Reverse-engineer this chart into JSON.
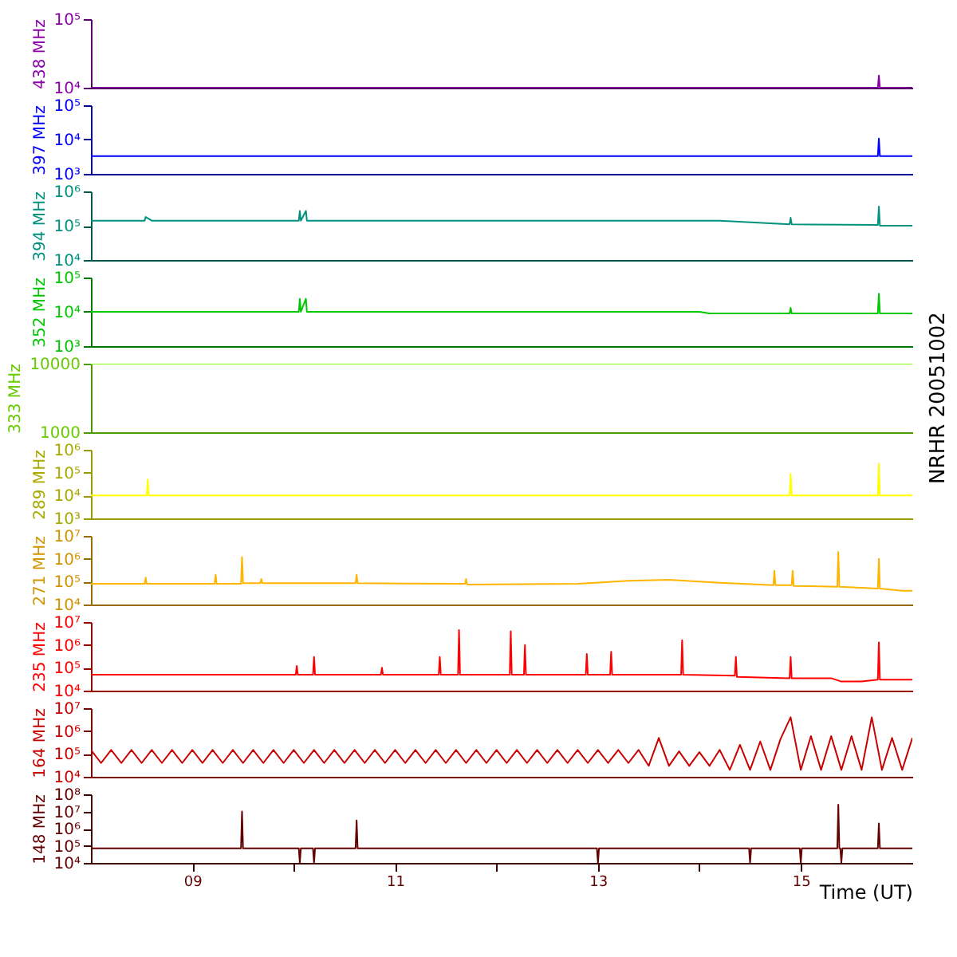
{
  "chart_data": [
    {
      "type": "line",
      "ylabel": "438 MHz",
      "color": "#8c00aa",
      "log": true,
      "tick_labels": "y",
      "xlim": [
        8,
        16.1
      ],
      "ylim": [
        10000,
        100000
      ],
      "yticks": [
        {
          "value": 10000,
          "label": "10⁴"
        },
        {
          "value": 100000,
          "label": "10⁵"
        }
      ],
      "x": [
        8,
        15.76,
        15.77,
        15.78,
        16.1
      ],
      "values": [
        10000,
        10000,
        15000,
        10000,
        10000
      ]
    },
    {
      "type": "line",
      "ylabel": "397 MHz",
      "color": "#0000ff",
      "log": true,
      "tick_labels": "y",
      "xlim": [
        8,
        16.1
      ],
      "ylim": [
        1000,
        100000
      ],
      "yticks": [
        {
          "value": 1000,
          "label": "10³"
        },
        {
          "value": 10000,
          "label": "10⁴"
        },
        {
          "value": 100000,
          "label": "10⁵"
        }
      ],
      "x": [
        8,
        15.76,
        15.77,
        15.78,
        16.1
      ],
      "values": [
        3300,
        3300,
        10700,
        3300,
        3300
      ]
    },
    {
      "type": "line",
      "ylabel": "394 MHz",
      "color": "#00917f",
      "log": true,
      "tick_labels": "y",
      "xlim": [
        8,
        16.1
      ],
      "ylim": [
        10000,
        1000000
      ],
      "yticks": [
        {
          "value": 10000,
          "label": "10⁴"
        },
        {
          "value": 100000,
          "label": "10⁵"
        },
        {
          "value": 1000000,
          "label": "10⁶"
        }
      ],
      "x": [
        8,
        8.53,
        8.54,
        8.6,
        10.05,
        10.06,
        10.07,
        10.12,
        10.13,
        14.2,
        14.89,
        14.9,
        14.91,
        15.76,
        15.77,
        15.78,
        16.1
      ],
      "values": [
        140000,
        140000,
        180000,
        140000,
        140000,
        270000,
        140000,
        270000,
        140000,
        140000,
        110000,
        170000,
        110000,
        105000,
        360000,
        100000,
        100000
      ]
    },
    {
      "type": "line",
      "ylabel": "352 MHz",
      "color": "#00c800",
      "log": true,
      "tick_labels": "y",
      "xlim": [
        8,
        16.1
      ],
      "ylim": [
        1000,
        100000
      ],
      "yticks": [
        {
          "value": 1000,
          "label": "10³"
        },
        {
          "value": 10000,
          "label": "10⁴"
        },
        {
          "value": 100000,
          "label": "10⁵"
        }
      ],
      "x": [
        8,
        10.05,
        10.06,
        10.07,
        10.12,
        10.13,
        14,
        14.1,
        14.89,
        14.9,
        14.91,
        15.76,
        15.77,
        15.78,
        16.1
      ],
      "values": [
        10000,
        10000,
        24000,
        10000,
        24000,
        10000,
        10000,
        9000,
        9000,
        13000,
        9000,
        9000,
        34000,
        9000,
        9000
      ]
    },
    {
      "type": "line",
      "ylabel": "333 MHz",
      "color": "#80ff00",
      "log": true,
      "tick_labels": "y",
      "xlim": [
        8,
        16.1
      ],
      "ylim": [
        1000,
        10000
      ],
      "yticks": [
        1000,
        10000
      ],
      "annotations": [
        "NRHR 20051002"
      ],
      "x": [
        8,
        16.1
      ],
      "values": [
        10000,
        10000
      ]
    },
    {
      "type": "line",
      "ylabel": "289 MHz",
      "color": "#ffff00",
      "log": true,
      "tick_labels": "y",
      "xlim": [
        8,
        16.1
      ],
      "ylim": [
        1000,
        1000000
      ],
      "yticks": [
        {
          "value": 1000,
          "label": "10³"
        },
        {
          "value": 10000,
          "label": "10⁴"
        },
        {
          "value": 100000,
          "label": "10⁵"
        },
        {
          "value": 1000000,
          "label": "10⁶"
        }
      ],
      "x": [
        8,
        8.55,
        8.56,
        8.57,
        14.89,
        14.9,
        14.91,
        15.76,
        15.77,
        15.78,
        16.1
      ],
      "values": [
        10000,
        10000,
        50000,
        10000,
        10000,
        90000,
        10000,
        10000,
        250000,
        10000,
        10000
      ]
    },
    {
      "type": "line",
      "ylabel": "271 MHz",
      "color": "#ffb400",
      "log": true,
      "tick_labels": "y",
      "xlim": [
        8,
        16.1
      ],
      "ylim": [
        10000,
        10000000
      ],
      "yticks": [
        {
          "value": 10000,
          "label": "10⁴"
        },
        {
          "value": 100000,
          "label": "10⁵"
        },
        {
          "value": 1000000,
          "label": "10⁶"
        },
        {
          "value": 10000000,
          "label": "10⁷"
        }
      ],
      "x": [
        8,
        8.53,
        8.54,
        8.55,
        9.22,
        9.23,
        9.24,
        9.48,
        9.49,
        9.5,
        9.67,
        9.68,
        9.69,
        10.61,
        10.62,
        10.63,
        11.69,
        11.7,
        11.71,
        12.8,
        13.3,
        13.7,
        14.2,
        14.73,
        14.74,
        14.75,
        14.91,
        14.92,
        14.93,
        15.36,
        15.37,
        15.38,
        15.76,
        15.77,
        15.78,
        16,
        16.1
      ],
      "values": [
        80000,
        80000,
        150000,
        80000,
        80000,
        200000,
        80000,
        80000,
        1200000,
        85000,
        85000,
        130000,
        85000,
        85000,
        200000,
        85000,
        80000,
        130000,
        75000,
        80000,
        110000,
        120000,
        90000,
        70000,
        300000,
        70000,
        70000,
        300000,
        65000,
        60000,
        2000000,
        60000,
        50000,
        1000000,
        50000,
        40000,
        40000
      ]
    },
    {
      "type": "line",
      "ylabel": "235 MHz",
      "color": "#ff0000",
      "log": true,
      "tick_labels": "y",
      "xlim": [
        8,
        16.1
      ],
      "ylim": [
        10000,
        10000000
      ],
      "yticks": [
        {
          "value": 10000,
          "label": "10⁴"
        },
        {
          "value": 100000,
          "label": "10⁵"
        },
        {
          "value": 1000000,
          "label": "10⁶"
        },
        {
          "value": 10000000,
          "label": "10⁷"
        }
      ],
      "x": [
        8,
        10.02,
        10.03,
        10.04,
        10.19,
        10.2,
        10.21,
        10.86,
        10.87,
        10.88,
        11.43,
        11.44,
        11.45,
        11.62,
        11.63,
        11.64,
        12.13,
        12.14,
        12.15,
        12.27,
        12.28,
        12.29,
        12.88,
        12.89,
        12.9,
        13.12,
        13.13,
        13.14,
        13.82,
        13.83,
        13.84,
        14.35,
        14.36,
        14.37,
        14.89,
        14.9,
        14.91,
        15.3,
        15.4,
        15.6,
        15.76,
        15.77,
        15.78,
        16.1
      ],
      "values": [
        50000,
        50000,
        120000,
        50000,
        50000,
        300000,
        50000,
        50000,
        100000,
        50000,
        50000,
        300000,
        50000,
        50000,
        4500000,
        50000,
        50000,
        4000000,
        50000,
        50000,
        1000000,
        50000,
        50000,
        400000,
        50000,
        50000,
        500000,
        50000,
        50000,
        1600000,
        50000,
        45000,
        300000,
        40000,
        35000,
        300000,
        35000,
        35000,
        25000,
        25000,
        30000,
        1300000,
        30000,
        30000
      ]
    },
    {
      "type": "line",
      "ylabel": "164 MHz",
      "color": "#c80000",
      "log": true,
      "tick_labels": "y",
      "xlim": [
        8,
        16.1
      ],
      "ylim": [
        10000,
        10000000
      ],
      "yticks": [
        {
          "value": 10000,
          "label": "10⁴"
        },
        {
          "value": 100000,
          "label": "10⁵"
        },
        {
          "value": 1000000,
          "label": "10⁶"
        },
        {
          "value": 10000000,
          "label": "10⁷"
        }
      ],
      "x": [
        8,
        8.1,
        8.2,
        8.3,
        8.4,
        8.5,
        8.6,
        8.7,
        8.8,
        8.9,
        9,
        9.1,
        9.2,
        9.3,
        9.4,
        9.5,
        9.6,
        9.7,
        9.8,
        9.9,
        10,
        10.1,
        10.2,
        10.3,
        10.4,
        10.5,
        10.6,
        10.7,
        10.8,
        10.9,
        11,
        11.1,
        11.2,
        11.3,
        11.4,
        11.5,
        11.6,
        11.7,
        11.8,
        11.9,
        12,
        12.1,
        12.2,
        12.3,
        12.4,
        12.5,
        12.6,
        12.7,
        12.8,
        12.9,
        13,
        13.1,
        13.2,
        13.3,
        13.4,
        13.5,
        13.6,
        13.7,
        13.8,
        13.9,
        14,
        14.1,
        14.2,
        14.3,
        14.4,
        14.5,
        14.6,
        14.7,
        14.8,
        14.9,
        15,
        15.1,
        15.2,
        15.3,
        15.4,
        15.5,
        15.6,
        15.7,
        15.8,
        15.9,
        16,
        16.1
      ],
      "values": [
        150000,
        40000,
        150000,
        40000,
        150000,
        40000,
        150000,
        40000,
        150000,
        40000,
        150000,
        40000,
        150000,
        40000,
        150000,
        40000,
        150000,
        40000,
        150000,
        40000,
        150000,
        40000,
        150000,
        40000,
        150000,
        40000,
        150000,
        40000,
        150000,
        40000,
        150000,
        40000,
        150000,
        40000,
        150000,
        40000,
        150000,
        40000,
        150000,
        40000,
        150000,
        40000,
        150000,
        40000,
        150000,
        40000,
        150000,
        40000,
        150000,
        40000,
        150000,
        40000,
        150000,
        40000,
        150000,
        30000,
        500000,
        30000,
        130000,
        30000,
        120000,
        30000,
        150000,
        20000,
        250000,
        20000,
        350000,
        20000,
        450000,
        4000000,
        20000,
        600000,
        20000,
        600000,
        20000,
        600000,
        20000,
        4000000,
        20000,
        500000,
        20000,
        500000
      ]
    },
    {
      "type": "line",
      "ylabel": "148 MHz",
      "xlabel": "Time (UT)",
      "color": "#640000",
      "log": true,
      "xlim": [
        8,
        16.1
      ],
      "xticks": [
        {
          "value": 9,
          "label": "09"
        },
        {
          "value": 10,
          "label": null
        },
        {
          "value": 11,
          "label": "11"
        },
        {
          "value": 12,
          "label": null
        },
        {
          "value": 13,
          "label": "13"
        },
        {
          "value": 14,
          "label": null
        },
        {
          "value": 15,
          "label": "15"
        }
      ],
      "ylim": [
        10000,
        100000000
      ],
      "yticks": [
        {
          "value": 10000,
          "label": "10⁴"
        },
        {
          "value": 100000,
          "label": "10⁵"
        },
        {
          "value": 1000000,
          "label": "10⁶"
        },
        {
          "value": 10000000,
          "label": "10⁷"
        },
        {
          "value": 100000000,
          "label": "10⁸"
        }
      ],
      "x": [
        8,
        9.48,
        9.49,
        9.5,
        10.05,
        10.06,
        10.07,
        10.19,
        10.2,
        10.21,
        10.61,
        10.62,
        10.63,
        12.99,
        13,
        13.01,
        14.49,
        14.5,
        14.51,
        14.99,
        15,
        15.01,
        15.36,
        15.37,
        15.38,
        15.39,
        15.4,
        15.41,
        15.76,
        15.77,
        15.78,
        16.1
      ],
      "values": [
        70000,
        70000,
        10000000,
        70000,
        70000,
        10000,
        70000,
        70000,
        10000,
        70000,
        70000,
        3000000,
        70000,
        70000,
        10000,
        70000,
        70000,
        10000,
        70000,
        70000,
        10000,
        70000,
        70000,
        25000000,
        70000,
        70000,
        10000,
        70000,
        70000,
        2000000,
        70000,
        70000
      ]
    }
  ]
}
